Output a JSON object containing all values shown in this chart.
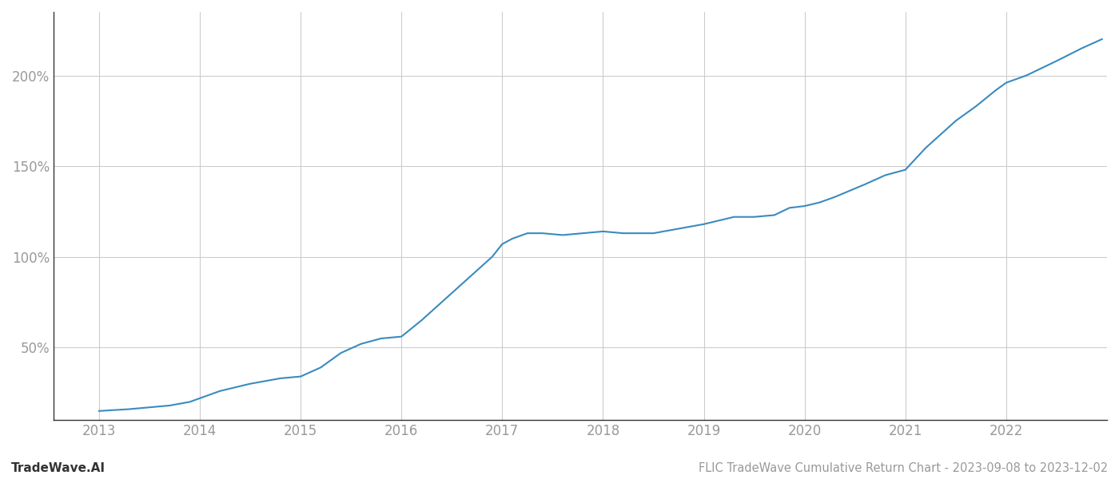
{
  "title": "FLIC TradeWave Cumulative Return Chart - 2023-09-08 to 2023-12-02",
  "watermark": "TradeWave.AI",
  "line_color": "#3a8bbf",
  "background_color": "#ffffff",
  "grid_color": "#cccccc",
  "x_years": [
    2013,
    2014,
    2015,
    2016,
    2017,
    2018,
    2019,
    2020,
    2021,
    2022
  ],
  "data_x": [
    2013.0,
    2013.15,
    2013.3,
    2013.5,
    2013.7,
    2013.9,
    2014.0,
    2014.2,
    2014.5,
    2014.8,
    2015.0,
    2015.2,
    2015.4,
    2015.6,
    2015.8,
    2016.0,
    2016.2,
    2016.5,
    2016.7,
    2016.9,
    2017.0,
    2017.1,
    2017.25,
    2017.4,
    2017.6,
    2017.8,
    2018.0,
    2018.2,
    2018.5,
    2018.7,
    2018.9,
    2019.0,
    2019.15,
    2019.3,
    2019.5,
    2019.7,
    2019.85,
    2020.0,
    2020.15,
    2020.3,
    2020.6,
    2020.8,
    2021.0,
    2021.2,
    2021.5,
    2021.7,
    2021.9,
    2022.0,
    2022.2,
    2022.5,
    2022.75,
    2022.95
  ],
  "data_y": [
    15,
    15.5,
    16,
    17,
    18,
    20,
    22,
    26,
    30,
    33,
    34,
    39,
    47,
    52,
    55,
    56,
    65,
    80,
    90,
    100,
    107,
    110,
    113,
    113,
    112,
    113,
    114,
    113,
    113,
    115,
    117,
    118,
    120,
    122,
    122,
    123,
    127,
    128,
    130,
    133,
    140,
    145,
    148,
    160,
    175,
    183,
    192,
    196,
    200,
    208,
    215,
    220
  ],
  "ylim": [
    10,
    235
  ],
  "yticks": [
    50,
    100,
    150,
    200
  ],
  "ytick_labels": [
    "50%",
    "100%",
    "150%",
    "200%"
  ],
  "xlim": [
    2012.55,
    2023.0
  ],
  "title_fontsize": 10.5,
  "watermark_fontsize": 11,
  "tick_fontsize": 12,
  "tick_color": "#999999",
  "line_width": 1.5,
  "spine_color": "#333333"
}
